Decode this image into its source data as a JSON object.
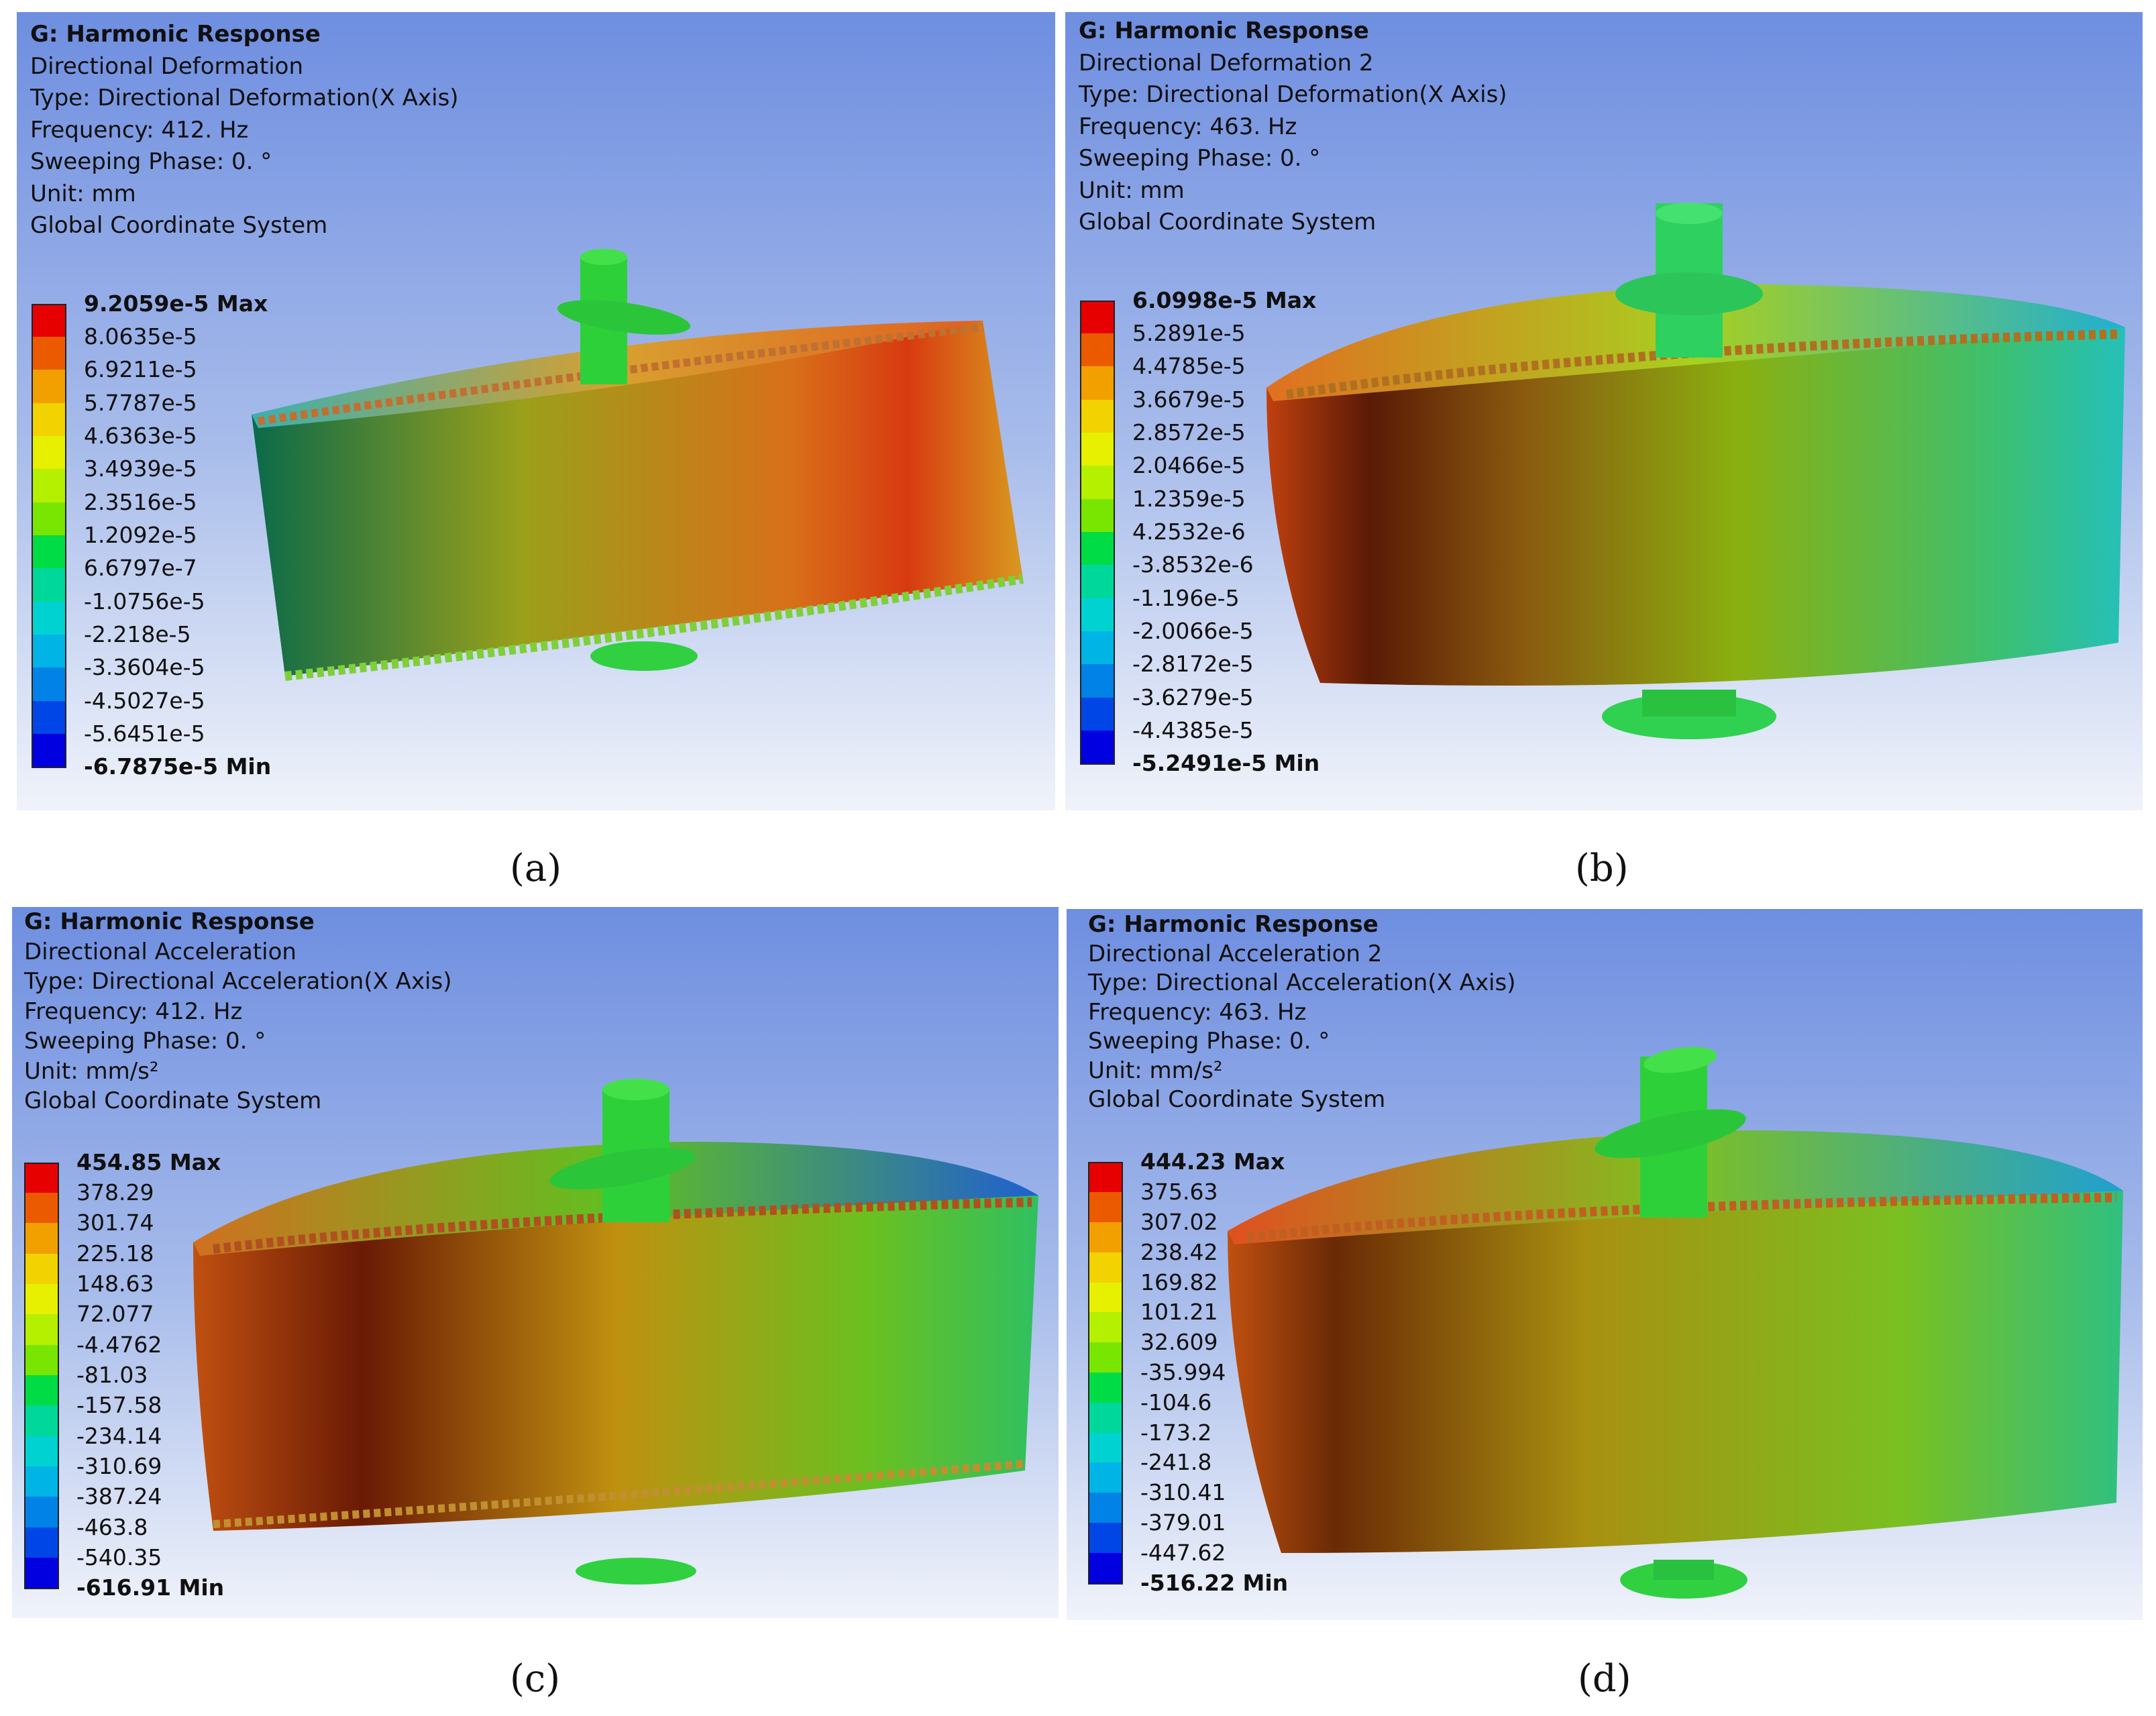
{
  "panels": [
    {
      "caption": "(a)",
      "title": "G: Harmonic Response",
      "result_name": "Directional Deformation",
      "type": "Type: Directional Deformation(X Axis)",
      "frequency": "Frequency: 412. Hz",
      "phase": "Sweeping Phase: 0. °",
      "unit": "Unit: mm",
      "system": "Global Coordinate System",
      "legend": [
        "9.2059e-5 Max",
        "8.0635e-5",
        "6.9211e-5",
        "5.7787e-5",
        "4.6363e-5",
        "3.4939e-5",
        "2.3516e-5",
        "1.2092e-5",
        "6.6797e-7",
        "-1.0756e-5",
        "-2.218e-5",
        "-3.3604e-5",
        "-4.5027e-5",
        "-5.6451e-5",
        "-6.7875e-5 Min"
      ]
    },
    {
      "caption": "(b)",
      "title": "G: Harmonic Response",
      "result_name": "Directional Deformation 2",
      "type": "Type: Directional Deformation(X Axis)",
      "frequency": "Frequency: 463. Hz",
      "phase": "Sweeping Phase: 0. °",
      "unit": "Unit: mm",
      "system": "Global Coordinate System",
      "legend": [
        "6.0998e-5 Max",
        "5.2891e-5",
        "4.4785e-5",
        "3.6679e-5",
        "2.8572e-5",
        "2.0466e-5",
        "1.2359e-5",
        "4.2532e-6",
        "-3.8532e-6",
        "-1.196e-5",
        "-2.0066e-5",
        "-2.8172e-5",
        "-3.6279e-5",
        "-4.4385e-5",
        "-5.2491e-5 Min"
      ]
    },
    {
      "caption": "(c)",
      "title": "G: Harmonic Response",
      "result_name": "Directional Acceleration",
      "type": "Type: Directional Acceleration(X Axis)",
      "frequency": "Frequency: 412. Hz",
      "phase": "Sweeping Phase: 0. °",
      "unit": "Unit: mm/s²",
      "system": "Global Coordinate System",
      "legend": [
        "454.85 Max",
        "378.29",
        "301.74",
        "225.18",
        "148.63",
        "72.077",
        "-4.4762",
        "-81.03",
        "-157.58",
        "-234.14",
        "-310.69",
        "-387.24",
        "-463.8",
        "-540.35",
        "-616.91 Min"
      ]
    },
    {
      "caption": "(d)",
      "title": "G: Harmonic Response",
      "result_name": "Directional Acceleration 2",
      "type": "Type: Directional Acceleration(X Axis)",
      "frequency": "Frequency: 463. Hz",
      "phase": "Sweeping Phase: 0. °",
      "unit": "Unit: mm/s²",
      "system": "Global Coordinate System",
      "legend": [
        "444.23 Max",
        "375.63",
        "307.02",
        "238.42",
        "169.82",
        "101.21",
        "32.609",
        "-35.994",
        "-104.6",
        "-173.2",
        "-241.8",
        "-310.41",
        "-379.01",
        "-447.62",
        "-516.22 Min"
      ]
    }
  ],
  "colormap": [
    "#e60000",
    "#ec5a00",
    "#f2a000",
    "#f2d200",
    "#e6f000",
    "#b4f000",
    "#78e600",
    "#32dc00",
    "#00dc46",
    "#00d79b",
    "#00d2d2",
    "#00b4e6",
    "#0082e6",
    "#0046e6",
    "#0000e1"
  ]
}
